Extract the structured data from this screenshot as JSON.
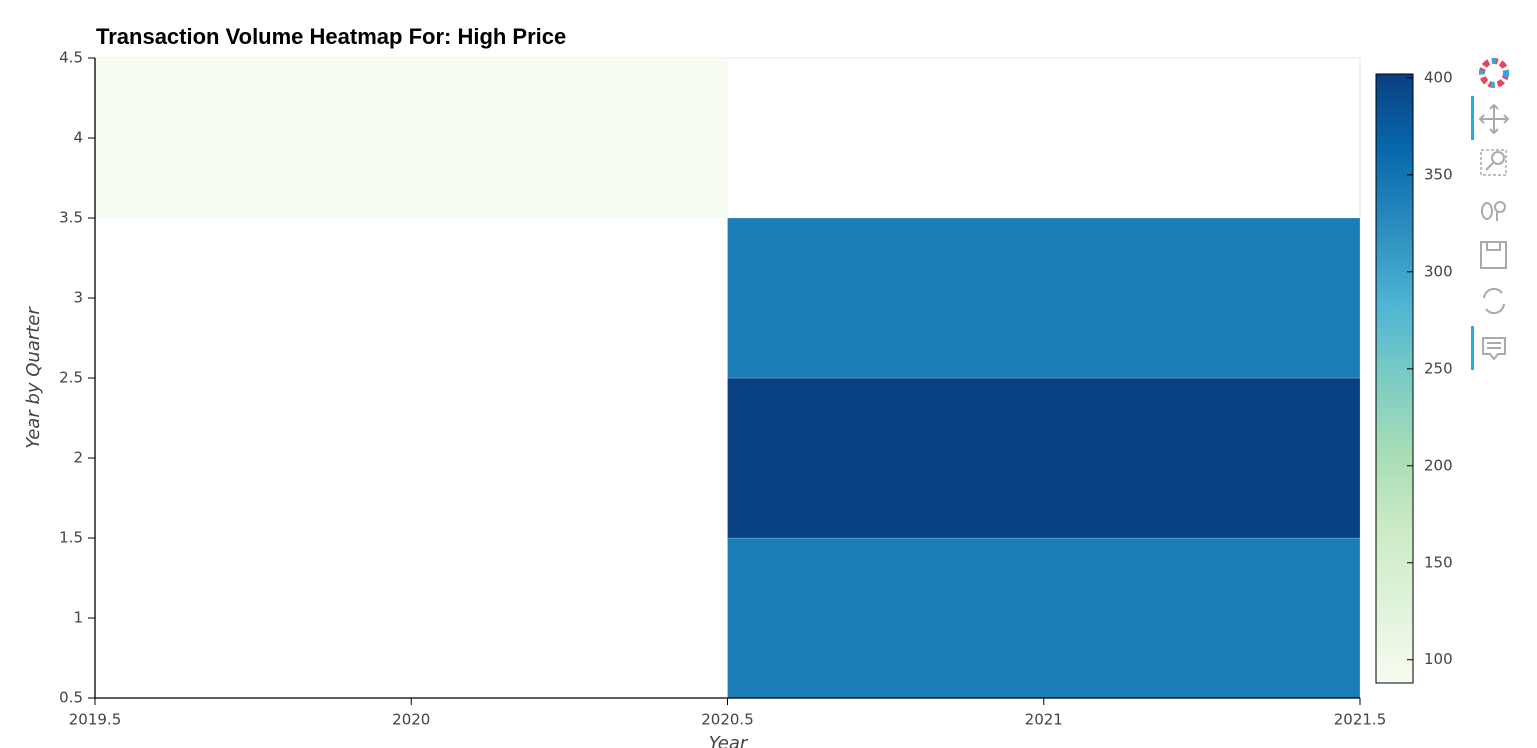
{
  "chart_data": {
    "type": "heatmap",
    "title": "Transaction Volume Heatmap For: High Price",
    "x_label": "Year",
    "y_label": "Year by Quarter",
    "x": [
      2020,
      2021,
      2021,
      2021
    ],
    "y": [
      4,
      1,
      2,
      3
    ],
    "values": [
      88,
      340,
      402,
      340
    ],
    "palette": [
      "#f7fcf0",
      "#e0f3db",
      "#ccebc5",
      "#a8ddb5",
      "#7bccc4",
      "#4eb3d3",
      "#2b8cbe",
      "#0868ac",
      "#084081"
    ],
    "xlim": [
      2019.5,
      2021.5
    ],
    "xticks": [
      2019.5,
      2020,
      2020.5,
      2021,
      2021.5
    ],
    "ylim": [
      0.5,
      4.5
    ],
    "yticks": [
      0.5,
      1,
      1.5,
      2,
      2.5,
      3,
      3.5,
      4,
      4.5
    ],
    "colorbar_lim": [
      88,
      402
    ],
    "colorbar_ticks": [
      100,
      150,
      200,
      250,
      300,
      350,
      400
    ]
  }
}
